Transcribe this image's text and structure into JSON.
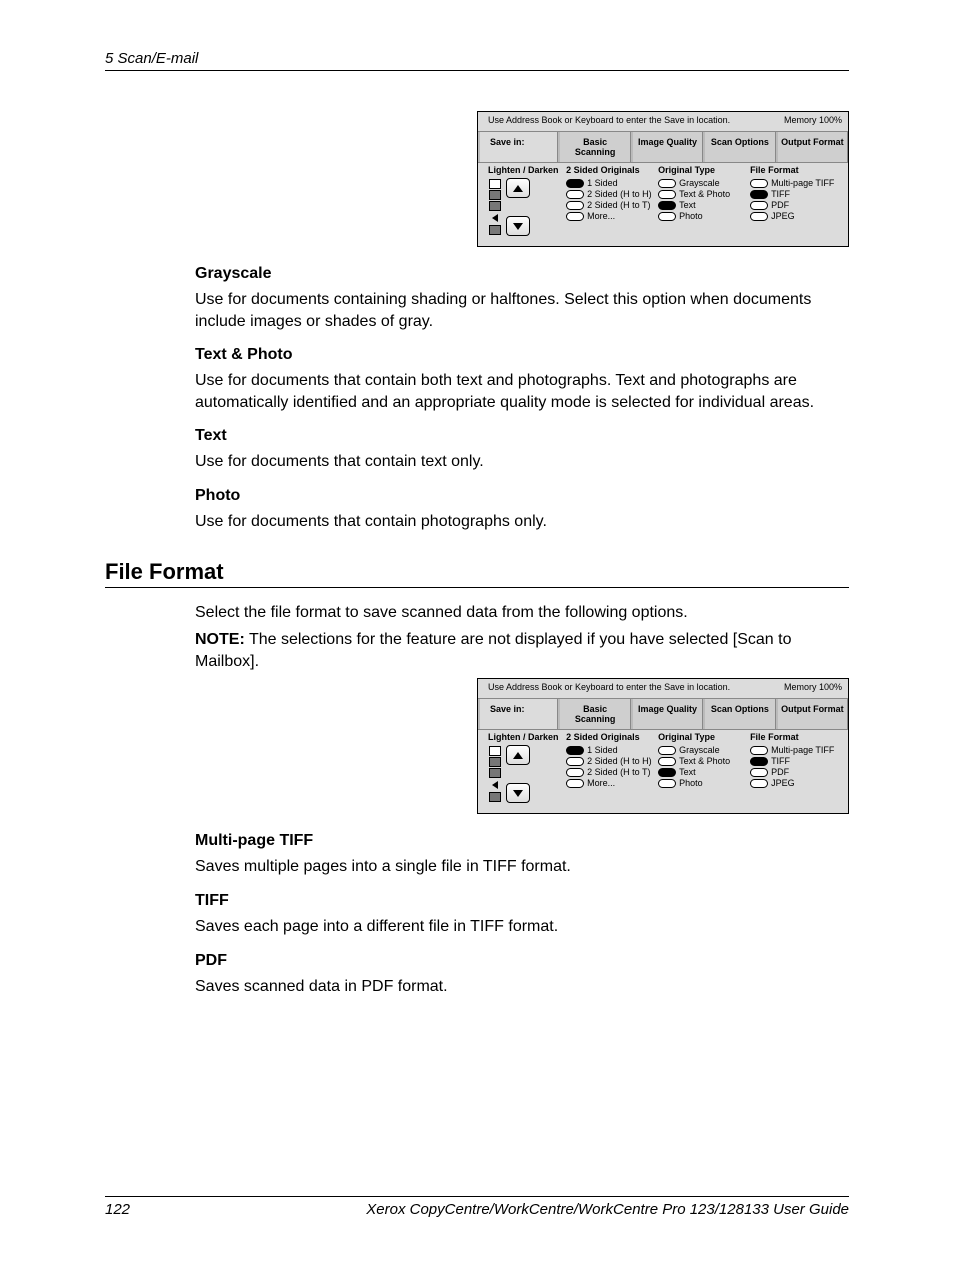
{
  "header": {
    "chapter": "5  Scan/E-mail"
  },
  "panel": {
    "memory": "Memory 100%",
    "hint": "Use Address Book or Keyboard to enter the Save in location.",
    "tabs": {
      "save": "Save in:",
      "basic": "Basic Scanning",
      "quality": "Image Quality",
      "options": "Scan Options",
      "output": "Output Format"
    },
    "cols": {
      "ld_title": "Lighten / Darken",
      "sided_title": "2 Sided Originals",
      "sided": {
        "a": "1 Sided",
        "b": "2 Sided (H to H)",
        "c": "2 Sided (H to T)",
        "d": "More..."
      },
      "orig_title": "Original Type",
      "orig": {
        "a": "Grayscale",
        "b": "Text & Photo",
        "c": "Text",
        "d": "Photo"
      },
      "file_title": "File Format",
      "file": {
        "a": "Multi-page TIFF",
        "b": "TIFF",
        "c": "PDF",
        "d": "JPEG"
      }
    }
  },
  "sections": {
    "grayscale": {
      "h": "Grayscale",
      "p": "Use for documents containing shading or halftones. Select this option when documents include images or shades of gray."
    },
    "textphoto": {
      "h": "Text & Photo",
      "p": "Use for documents that contain both text and photographs. Text and photographs are automatically identified and an appropriate quality mode is selected for individual areas."
    },
    "text": {
      "h": "Text",
      "p": "Use for documents that contain text only."
    },
    "photo": {
      "h": "Photo",
      "p": "Use for documents that contain photographs only."
    },
    "fileformat": {
      "h": "File Format",
      "intro": "Select the file format to save scanned data from the following options.",
      "note_label": "NOTE:",
      "note": " The selections for the feature are not displayed if you have selected [Scan to Mailbox]."
    },
    "mptiff": {
      "h": "Multi-page TIFF",
      "p": "Saves multiple pages into a single file in TIFF format."
    },
    "tiff": {
      "h": "TIFF",
      "p": "Saves each page into a different file in TIFF format."
    },
    "pdf": {
      "h": "PDF",
      "p": "Saves scanned data in PDF format."
    }
  },
  "footer": {
    "page": "122",
    "guide": "Xerox CopyCentre/WorkCentre/WorkCentre Pro 123/128133 User Guide"
  }
}
